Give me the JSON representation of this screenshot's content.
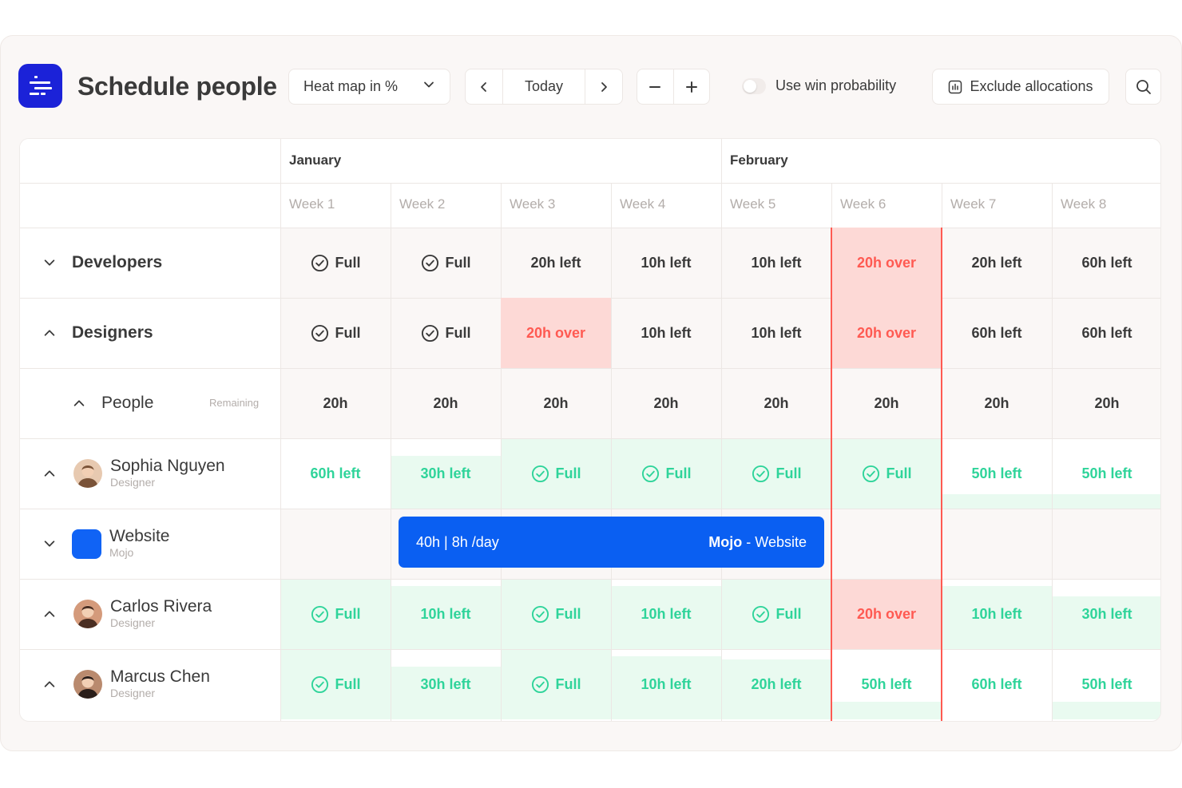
{
  "app": {
    "title": "Schedule people"
  },
  "toolbar": {
    "view_select": "Heat map in %",
    "today_label": "Today",
    "toggle_label": "Use win probability",
    "toggle_on": false,
    "exclude_label": "Exclude allocations"
  },
  "months": [
    {
      "label": "January"
    },
    {
      "label": "February"
    }
  ],
  "weeks": [
    "Week 1",
    "Week 2",
    "Week 3",
    "Week 4",
    "Week 5",
    "Week 6",
    "Week 7",
    "Week 8"
  ],
  "groups": [
    {
      "name": "Developers",
      "expanded": false,
      "cells": [
        {
          "text": "Full",
          "check": true,
          "state": "neutral"
        },
        {
          "text": "Full",
          "check": true,
          "state": "neutral"
        },
        {
          "text": "20h left",
          "state": "neutral"
        },
        {
          "text": "10h left",
          "state": "neutral"
        },
        {
          "text": "10h left",
          "state": "neutral"
        },
        {
          "text": "20h over",
          "state": "over"
        },
        {
          "text": "20h left",
          "state": "neutral"
        },
        {
          "text": "60h left",
          "state": "neutral"
        }
      ]
    },
    {
      "name": "Designers",
      "expanded": true,
      "cells": [
        {
          "text": "Full",
          "check": true,
          "state": "neutral"
        },
        {
          "text": "Full",
          "check": true,
          "state": "neutral"
        },
        {
          "text": "20h over",
          "state": "over"
        },
        {
          "text": "10h left",
          "state": "neutral"
        },
        {
          "text": "10h left",
          "state": "neutral"
        },
        {
          "text": "20h over",
          "state": "over"
        },
        {
          "text": "60h left",
          "state": "neutral"
        },
        {
          "text": "60h left",
          "state": "neutral"
        }
      ]
    }
  ],
  "people_row": {
    "label": "People",
    "sublabel": "Remaining",
    "cells": [
      "20h",
      "20h",
      "20h",
      "20h",
      "20h",
      "20h",
      "20h",
      "20h"
    ]
  },
  "persons": [
    {
      "name": "Sophia Nguyen",
      "role": "Designer",
      "cells": [
        {
          "text": "60h left",
          "check": false,
          "fill": 0.0
        },
        {
          "text": "30h left",
          "check": false,
          "fill": 0.75
        },
        {
          "text": "Full",
          "check": true,
          "fill": 1.0
        },
        {
          "text": "Full",
          "check": true,
          "fill": 1.0
        },
        {
          "text": "Full",
          "check": true,
          "fill": 1.0
        },
        {
          "text": "Full",
          "check": true,
          "fill": 1.0
        },
        {
          "text": "50h left",
          "check": false,
          "fill": 0.2
        },
        {
          "text": "50h left",
          "check": false,
          "fill": 0.2
        }
      ]
    },
    {
      "name": "Carlos Rivera",
      "role": "Designer",
      "cells": [
        {
          "text": "Full",
          "check": true,
          "fill": 1.0
        },
        {
          "text": "10h left",
          "check": false,
          "fill": 0.9
        },
        {
          "text": "Full",
          "check": true,
          "fill": 1.0
        },
        {
          "text": "10h left",
          "check": false,
          "fill": 0.9
        },
        {
          "text": "Full",
          "check": true,
          "fill": 1.0
        },
        {
          "text": "20h over",
          "check": false,
          "over": true
        },
        {
          "text": "10h left",
          "check": false,
          "fill": 0.9
        },
        {
          "text": "30h left",
          "check": false,
          "fill": 0.75
        }
      ]
    },
    {
      "name": "Marcus Chen",
      "role": "Designer",
      "cells": [
        {
          "text": "Full",
          "check": true,
          "fill": 1.0
        },
        {
          "text": "30h left",
          "check": false,
          "fill": 0.75
        },
        {
          "text": "Full",
          "check": true,
          "fill": 1.0
        },
        {
          "text": "10h left",
          "check": false,
          "fill": 0.9
        },
        {
          "text": "20h left",
          "check": false,
          "fill": 0.85
        },
        {
          "text": "50h left",
          "check": false,
          "fill": 0.25
        },
        {
          "text": "60h left",
          "check": false,
          "fill": 0.0
        },
        {
          "text": "50h left",
          "check": false,
          "fill": 0.25
        }
      ]
    }
  ],
  "project": {
    "name": "Website",
    "client": "Mojo",
    "allocation_hours": "40h | 8h /day",
    "allocation_client": "Mojo",
    "allocation_sep": " - ",
    "allocation_project": "Website"
  },
  "colors": {
    "brand": "#1b22d8",
    "allocation": "#0a5ff2",
    "over": "#ff5a52",
    "over_bg": "#fdd9d6",
    "ok": "#2fd49a",
    "ok_bg": "#e9faf0"
  }
}
